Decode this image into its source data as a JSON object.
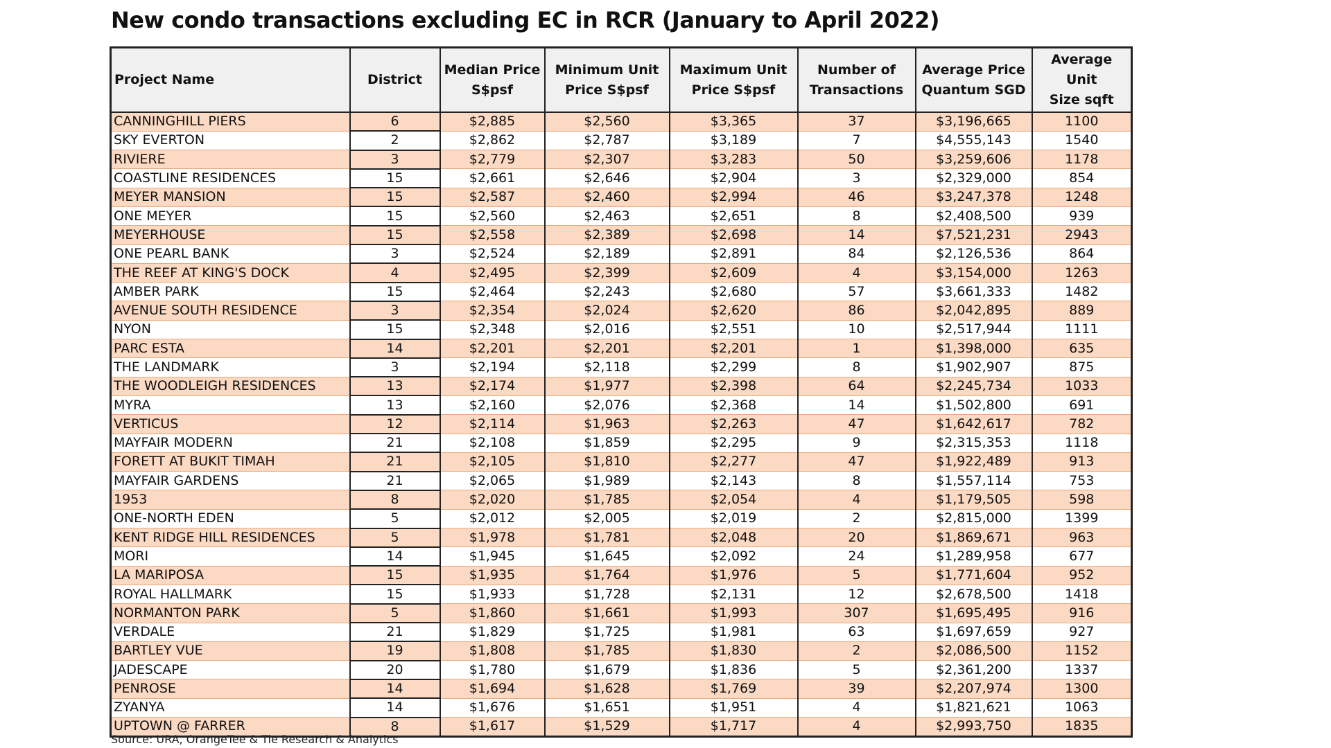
{
  "title": "New condo transactions excluding EC in RCR (January to April 2022)",
  "source": "Source: URA, OrangeTee & Tie Research & Analytics",
  "colors": {
    "row_highlight": "#fbd9c3",
    "header_background": "#f0f0f0",
    "border": "#222222"
  },
  "table": {
    "headers": [
      {
        "line1": "Project Name",
        "line2": ""
      },
      {
        "line1": "District",
        "line2": ""
      },
      {
        "line1": "Median Price",
        "line2": "S$psf"
      },
      {
        "line1": "Minimum Unit",
        "line2": "Price S$psf"
      },
      {
        "line1": "Maximum Unit",
        "line2": "Price S$psf"
      },
      {
        "line1": "Number of",
        "line2": "Transactions"
      },
      {
        "line1": "Average Price",
        "line2": "Quantum SGD"
      },
      {
        "line1": "Average Unit",
        "line2": "Size sqft"
      }
    ],
    "rows": [
      [
        "CANNINGHILL PIERS",
        "6",
        "$2,885",
        "$2,560",
        "$3,365",
        "37",
        "$3,196,665",
        "1100"
      ],
      [
        "SKY EVERTON",
        "2",
        "$2,862",
        "$2,787",
        "$3,189",
        "7",
        "$4,555,143",
        "1540"
      ],
      [
        "RIVIERE",
        "3",
        "$2,779",
        "$2,307",
        "$3,283",
        "50",
        "$3,259,606",
        "1178"
      ],
      [
        "COASTLINE RESIDENCES",
        "15",
        "$2,661",
        "$2,646",
        "$2,904",
        "3",
        "$2,329,000",
        "854"
      ],
      [
        "MEYER MANSION",
        "15",
        "$2,587",
        "$2,460",
        "$2,994",
        "46",
        "$3,247,378",
        "1248"
      ],
      [
        "ONE MEYER",
        "15",
        "$2,560",
        "$2,463",
        "$2,651",
        "8",
        "$2,408,500",
        "939"
      ],
      [
        "MEYERHOUSE",
        "15",
        "$2,558",
        "$2,389",
        "$2,698",
        "14",
        "$7,521,231",
        "2943"
      ],
      [
        "ONE PEARL BANK",
        "3",
        "$2,524",
        "$2,189",
        "$2,891",
        "84",
        "$2,126,536",
        "864"
      ],
      [
        "THE REEF AT KING'S DOCK",
        "4",
        "$2,495",
        "$2,399",
        "$2,609",
        "4",
        "$3,154,000",
        "1263"
      ],
      [
        "AMBER PARK",
        "15",
        "$2,464",
        "$2,243",
        "$2,680",
        "57",
        "$3,661,333",
        "1482"
      ],
      [
        "AVENUE SOUTH RESIDENCE",
        "3",
        "$2,354",
        "$2,024",
        "$2,620",
        "86",
        "$2,042,895",
        "889"
      ],
      [
        "NYON",
        "15",
        "$2,348",
        "$2,016",
        "$2,551",
        "10",
        "$2,517,944",
        "1111"
      ],
      [
        "PARC ESTA",
        "14",
        "$2,201",
        "$2,201",
        "$2,201",
        "1",
        "$1,398,000",
        "635"
      ],
      [
        "THE LANDMARK",
        "3",
        "$2,194",
        "$2,118",
        "$2,299",
        "8",
        "$1,902,907",
        "875"
      ],
      [
        "THE WOODLEIGH RESIDENCES",
        "13",
        "$2,174",
        "$1,977",
        "$2,398",
        "64",
        "$2,245,734",
        "1033"
      ],
      [
        "MYRA",
        "13",
        "$2,160",
        "$2,076",
        "$2,368",
        "14",
        "$1,502,800",
        "691"
      ],
      [
        "VERTICUS",
        "12",
        "$2,114",
        "$1,963",
        "$2,263",
        "47",
        "$1,642,617",
        "782"
      ],
      [
        "MAYFAIR MODERN",
        "21",
        "$2,108",
        "$1,859",
        "$2,295",
        "9",
        "$2,315,353",
        "1118"
      ],
      [
        "FORETT AT BUKIT TIMAH",
        "21",
        "$2,105",
        "$1,810",
        "$2,277",
        "47",
        "$1,922,489",
        "913"
      ],
      [
        "MAYFAIR GARDENS",
        "21",
        "$2,065",
        "$1,989",
        "$2,143",
        "8",
        "$1,557,114",
        "753"
      ],
      [
        "1953",
        "8",
        "$2,020",
        "$1,785",
        "$2,054",
        "4",
        "$1,179,505",
        "598"
      ],
      [
        "ONE-NORTH EDEN",
        "5",
        "$2,012",
        "$2,005",
        "$2,019",
        "2",
        "$2,815,000",
        "1399"
      ],
      [
        "KENT RIDGE HILL RESIDENCES",
        "5",
        "$1,978",
        "$1,781",
        "$2,048",
        "20",
        "$1,869,671",
        "963"
      ],
      [
        "MORI",
        "14",
        "$1,945",
        "$1,645",
        "$2,092",
        "24",
        "$1,289,958",
        "677"
      ],
      [
        "LA MARIPOSA",
        "15",
        "$1,935",
        "$1,764",
        "$1,976",
        "5",
        "$1,771,604",
        "952"
      ],
      [
        "ROYAL HALLMARK",
        "15",
        "$1,933",
        "$1,728",
        "$2,131",
        "12",
        "$2,678,500",
        "1418"
      ],
      [
        "NORMANTON PARK",
        "5",
        "$1,860",
        "$1,661",
        "$1,993",
        "307",
        "$1,695,495",
        "916"
      ],
      [
        "VERDALE",
        "21",
        "$1,829",
        "$1,725",
        "$1,981",
        "63",
        "$1,697,659",
        "927"
      ],
      [
        "BARTLEY VUE",
        "19",
        "$1,808",
        "$1,785",
        "$1,830",
        "2",
        "$2,086,500",
        "1152"
      ],
      [
        "JADESCAPE",
        "20",
        "$1,780",
        "$1,679",
        "$1,836",
        "5",
        "$2,361,200",
        "1337"
      ],
      [
        "PENROSE",
        "14",
        "$1,694",
        "$1,628",
        "$1,769",
        "39",
        "$2,207,974",
        "1300"
      ],
      [
        "ZYANYA",
        "14",
        "$1,676",
        "$1,651",
        "$1,951",
        "4",
        "$1,821,621",
        "1063"
      ],
      [
        "UPTOWN @ FARRER",
        "8",
        "$1,617",
        "$1,529",
        "$1,717",
        "4",
        "$2,993,750",
        "1835"
      ]
    ]
  }
}
